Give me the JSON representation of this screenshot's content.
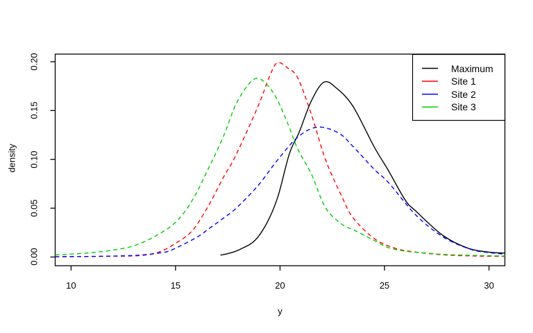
{
  "chart_data": {
    "type": "line",
    "title": "",
    "xlabel": "y",
    "ylabel": "density",
    "x_ticks": [
      "10",
      "15",
      "20",
      "25",
      "30"
    ],
    "x_tick_values": [
      10,
      15,
      20,
      25,
      30
    ],
    "y_ticks": [
      "0.00",
      "0.05",
      "0.10",
      "0.15",
      "0.20"
    ],
    "y_tick_values": [
      0.0,
      0.05,
      0.1,
      0.15,
      0.2
    ],
    "xlim": [
      9.24,
      30.76
    ],
    "ylim": [
      -0.0089,
      0.2078
    ],
    "grid": false,
    "background": "#ffffff",
    "box_color": "#000000",
    "legend": {
      "position": "topright",
      "entries": [
        {
          "label": "Maximum",
          "color": "#000000",
          "line": "solid"
        },
        {
          "label": "Site 1",
          "color": "#ff0000",
          "line": "solid"
        },
        {
          "label": "Site 2",
          "color": "#0000ff",
          "line": "solid"
        },
        {
          "label": "Site 3",
          "color": "#00cd00",
          "line": "solid"
        }
      ]
    },
    "series": [
      {
        "name": "Maximum",
        "color": "#000000",
        "dash": "solid",
        "x": [
          17.15,
          17.6,
          18.1,
          18.8,
          19.4,
          19.9,
          20.45,
          20.9,
          21.5,
          22.1,
          22.7,
          23.5,
          24.5,
          25.2,
          26.0,
          26.5,
          27.8,
          29.0,
          30.0,
          30.76
        ],
        "y": [
          0.002,
          0.004,
          0.008,
          0.017,
          0.036,
          0.062,
          0.106,
          0.127,
          0.16,
          0.179,
          0.173,
          0.154,
          0.113,
          0.088,
          0.058,
          0.047,
          0.022,
          0.009,
          0.005,
          0.004
        ]
      },
      {
        "name": "Site 1",
        "color": "#ff0000",
        "dash": "dashed",
        "x": [
          9.24,
          10.5,
          12.0,
          13.3,
          14.2,
          15.0,
          15.8,
          16.56,
          17.3,
          17.88,
          18.94,
          19.5,
          19.87,
          20.4,
          20.86,
          21.5,
          22.19,
          23.0,
          23.5,
          24.5,
          25.5,
          26.5,
          28.0,
          29.5,
          30.76
        ],
        "y": [
          0.0004,
          0.0005,
          0.0008,
          0.0015,
          0.005,
          0.014,
          0.027,
          0.052,
          0.082,
          0.104,
          0.154,
          0.185,
          0.199,
          0.193,
          0.183,
          0.146,
          0.099,
          0.06,
          0.04,
          0.019,
          0.009,
          0.005,
          0.002,
          0.001,
          0.0006
        ]
      },
      {
        "name": "Site 2",
        "color": "#0000ff",
        "dash": "dashed",
        "x": [
          9.24,
          10.5,
          12.0,
          13.3,
          14.5,
          15.0,
          16.0,
          16.56,
          17.3,
          17.88,
          18.94,
          19.87,
          20.86,
          21.8,
          22.8,
          23.5,
          24.5,
          25.2,
          26.5,
          27.8,
          29.1,
          30.0,
          30.76
        ],
        "y": [
          0.0003,
          0.0005,
          0.001,
          0.002,
          0.005,
          0.009,
          0.02,
          0.0284,
          0.04,
          0.0496,
          0.073,
          0.099,
          0.123,
          0.133,
          0.127,
          0.113,
          0.09,
          0.076,
          0.043,
          0.0206,
          0.008,
          0.0045,
          0.003
        ]
      },
      {
        "name": "Site 3",
        "color": "#00cd00",
        "dash": "dashed",
        "x": [
          9.24,
          10.0,
          11.0,
          12.0,
          13.0,
          14.0,
          15.0,
          15.8,
          16.56,
          17.3,
          17.88,
          18.5,
          18.94,
          19.4,
          19.87,
          20.4,
          20.86,
          21.5,
          22.19,
          23.0,
          23.5,
          24.5,
          25.2,
          26.0,
          27.0,
          28.0,
          29.5,
          30.76
        ],
        "y": [
          0.0022,
          0.003,
          0.0045,
          0.007,
          0.0115,
          0.021,
          0.0355,
          0.058,
          0.09,
          0.124,
          0.156,
          0.177,
          0.183,
          0.176,
          0.161,
          0.135,
          0.11,
          0.085,
          0.05,
          0.033,
          0.028,
          0.017,
          0.0095,
          0.006,
          0.004,
          0.0025,
          0.0015,
          0.001
        ]
      }
    ]
  }
}
